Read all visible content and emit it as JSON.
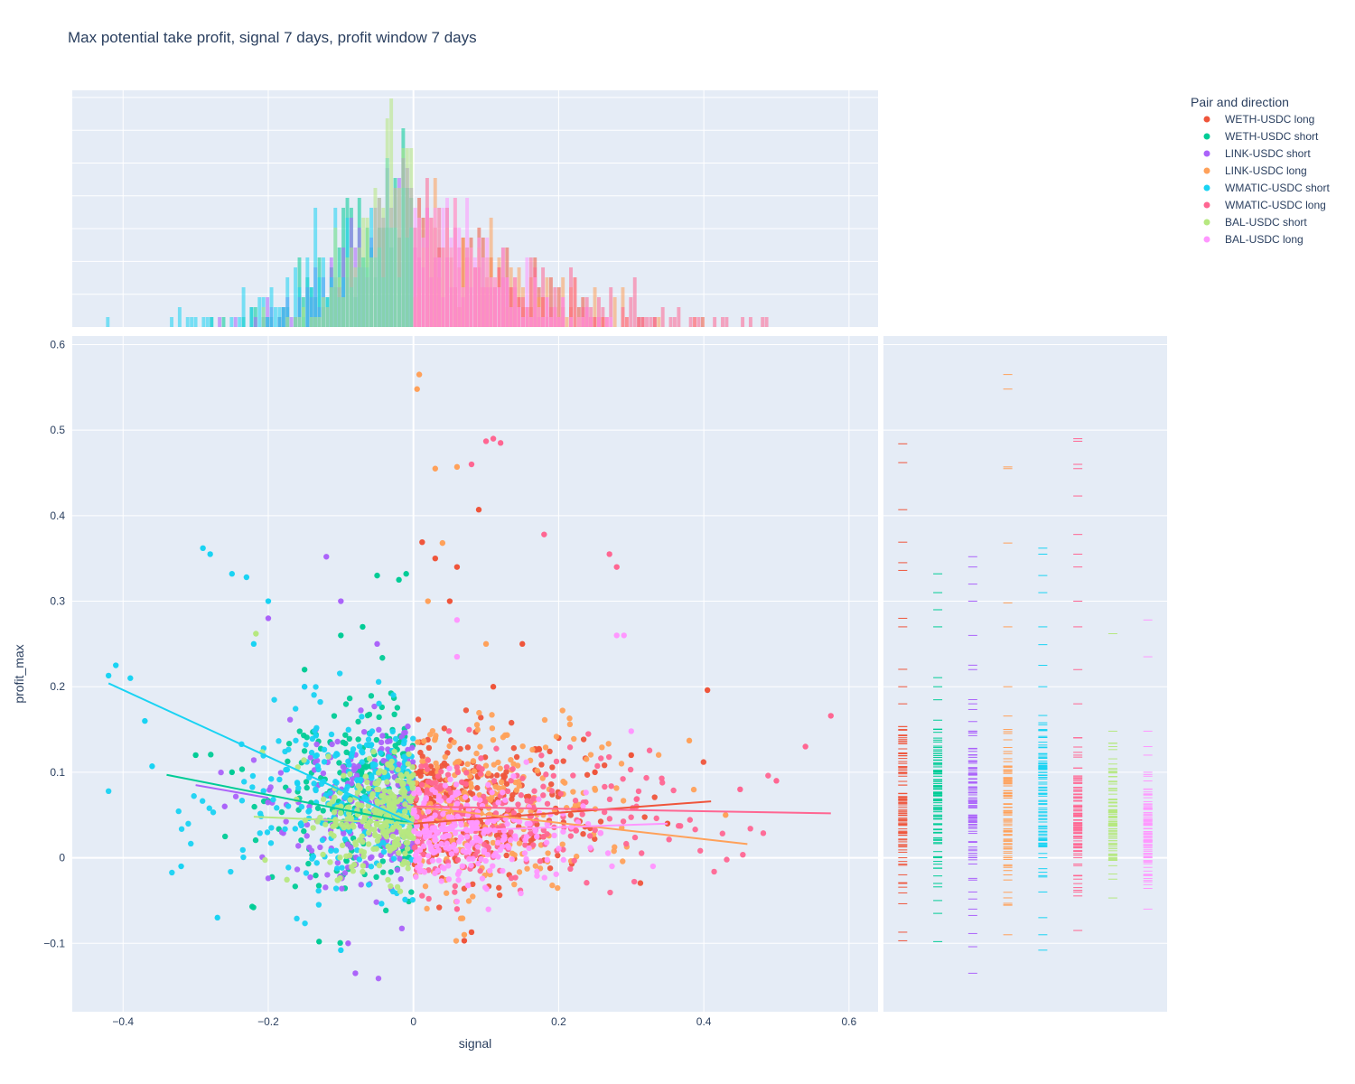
{
  "chart_data": {
    "type": "scatter",
    "title": "Max potential take profit, signal 7 days, profit window 7 days",
    "xlabel": "signal",
    "ylabel": "profit_max",
    "xlim": [
      -0.47,
      0.64
    ],
    "ylim": [
      -0.18,
      0.61
    ],
    "x_ticks": [
      -0.4,
      -0.2,
      0,
      0.2,
      0.4,
      0.6
    ],
    "x_tick_labels": [
      "−0.4",
      "−0.2",
      "0",
      "0.2",
      "0.4",
      "0.6"
    ],
    "y_ticks": [
      -0.1,
      0,
      0.1,
      0.2,
      0.3,
      0.4,
      0.5,
      0.6
    ],
    "y_tick_labels": [
      "−0.1",
      "0",
      "0.1",
      "0.2",
      "0.3",
      "0.4",
      "0.5",
      "0.6"
    ],
    "grid": true,
    "legend_title": "Pair and direction",
    "legend_position": "top-right",
    "marginal_x": "histogram",
    "marginal_y": "rug",
    "trendline": "ols",
    "series": [
      {
        "name": "WETH-USDC long",
        "color": "#EF553B",
        "x_range": [
          0,
          0.41
        ],
        "y_center": 0.06,
        "y_spread": 0.045,
        "trendline": [
          [
            0.0,
            0.04
          ],
          [
            0.41,
            0.066
          ]
        ],
        "points": [
          [
            0.09,
            0.407
          ],
          [
            0.012,
            0.369
          ],
          [
            0.405,
            0.196
          ],
          [
            0.06,
            0.34
          ],
          [
            0.03,
            0.35
          ],
          [
            0.05,
            0.3
          ],
          [
            0.11,
            0.2
          ],
          [
            0.2,
            0.14
          ],
          [
            0.3,
            0.12
          ],
          [
            0.07,
            -0.097
          ],
          [
            0.08,
            -0.087
          ],
          [
            0.35,
            0.04
          ],
          [
            0.25,
            0.1
          ],
          [
            0.15,
            0.25
          ]
        ],
        "rug_y": [
          0.484,
          0.462,
          0.407,
          0.369,
          0.345,
          0.336,
          0.28,
          0.27,
          0.2,
          0.18,
          0.15,
          0.1,
          0.05,
          0.0,
          -0.03,
          -0.087,
          -0.097
        ]
      },
      {
        "name": "WETH-USDC short",
        "color": "#00CC96",
        "x_range": [
          -0.35,
          0
        ],
        "y_center": 0.07,
        "y_spread": 0.05,
        "trendline": [
          [
            -0.34,
            0.097
          ],
          [
            0.0,
            0.04
          ]
        ],
        "points": [
          [
            -0.01,
            0.332
          ],
          [
            -0.02,
            0.325
          ],
          [
            -0.05,
            0.33
          ],
          [
            -0.13,
            -0.098
          ],
          [
            -0.3,
            0.12
          ],
          [
            -0.25,
            0.1
          ],
          [
            -0.1,
            0.26
          ],
          [
            -0.15,
            0.22
          ],
          [
            -0.07,
            0.27
          ]
        ],
        "rug_y": [
          0.332,
          0.31,
          0.29,
          0.27,
          0.2,
          0.15,
          0.1,
          0.05,
          0.0,
          -0.03,
          -0.05,
          -0.065,
          -0.098
        ]
      },
      {
        "name": "LINK-USDC short",
        "color": "#AB63FA",
        "x_range": [
          -0.3,
          0
        ],
        "y_center": 0.06,
        "y_spread": 0.05,
        "trendline": [
          [
            -0.3,
            0.085
          ],
          [
            -0.2,
            0.07
          ]
        ],
        "points": [
          [
            -0.08,
            -0.135
          ],
          [
            -0.12,
            0.352
          ],
          [
            -0.1,
            0.3
          ],
          [
            -0.2,
            0.28
          ],
          [
            -0.26,
            0.06
          ],
          [
            -0.15,
            0.2
          ],
          [
            -0.05,
            0.25
          ],
          [
            -0.09,
            -0.1
          ]
        ],
        "rug_y": [
          0.352,
          0.34,
          0.32,
          0.3,
          0.26,
          0.22,
          0.18,
          0.12,
          0.06,
          0.0,
          -0.04,
          -0.06,
          -0.104,
          -0.135
        ]
      },
      {
        "name": "LINK-USDC long",
        "color": "#FFA15A",
        "x_range": [
          0,
          0.46
        ],
        "y_center": 0.06,
        "y_spread": 0.05,
        "trendline": [
          [
            0.0,
            0.06
          ],
          [
            0.46,
            0.016
          ]
        ],
        "points": [
          [
            0.008,
            0.565
          ],
          [
            0.005,
            0.548
          ],
          [
            0.06,
            0.457
          ],
          [
            0.03,
            0.455
          ],
          [
            0.04,
            0.368
          ],
          [
            0.02,
            0.3
          ],
          [
            0.38,
            0.137
          ],
          [
            0.43,
            0.05
          ],
          [
            0.07,
            -0.09
          ],
          [
            0.1,
            0.25
          ]
        ],
        "rug_y": [
          0.565,
          0.548,
          0.457,
          0.455,
          0.368,
          0.298,
          0.27,
          0.2,
          0.15,
          0.1,
          0.05,
          0.0,
          -0.02,
          -0.055,
          -0.09
        ]
      },
      {
        "name": "WMATIC-USDC short",
        "color": "#19D3F3",
        "x_range": [
          -0.42,
          0
        ],
        "y_center": 0.07,
        "y_spread": 0.05,
        "trendline": [
          [
            -0.42,
            0.204
          ],
          [
            0.0,
            0.04
          ]
        ],
        "points": [
          [
            -0.42,
            0.213
          ],
          [
            -0.41,
            0.225
          ],
          [
            -0.39,
            0.21
          ],
          [
            -0.37,
            0.16
          ],
          [
            -0.36,
            0.107
          ],
          [
            -0.29,
            0.362
          ],
          [
            -0.28,
            0.355
          ],
          [
            -0.25,
            0.332
          ],
          [
            -0.23,
            0.328
          ],
          [
            -0.2,
            0.3
          ],
          [
            -0.32,
            -0.01
          ],
          [
            -0.27,
            -0.07
          ],
          [
            -0.1,
            -0.108
          ],
          [
            -0.22,
            0.25
          ],
          [
            -0.15,
            0.2
          ]
        ],
        "rug_y": [
          0.362,
          0.355,
          0.33,
          0.31,
          0.27,
          0.225,
          0.2,
          0.15,
          0.1,
          0.05,
          0.0,
          -0.04,
          -0.07,
          -0.09,
          -0.108
        ]
      },
      {
        "name": "WMATIC-USDC long",
        "color": "#FF6692",
        "x_range": [
          0,
          0.58
        ],
        "y_center": 0.045,
        "y_spread": 0.04,
        "trendline": [
          [
            0.0,
            0.06
          ],
          [
            0.575,
            0.052
          ]
        ],
        "points": [
          [
            0.11,
            0.49
          ],
          [
            0.1,
            0.487
          ],
          [
            0.08,
            0.46
          ],
          [
            0.12,
            0.485
          ],
          [
            0.575,
            0.166
          ],
          [
            0.54,
            0.13
          ],
          [
            0.5,
            0.09
          ],
          [
            0.45,
            0.08
          ],
          [
            0.27,
            0.355
          ],
          [
            0.28,
            0.34
          ],
          [
            0.18,
            0.378
          ],
          [
            0.06,
            -0.06
          ]
        ],
        "rug_y": [
          0.49,
          0.487,
          0.46,
          0.455,
          0.423,
          0.378,
          0.355,
          0.34,
          0.3,
          0.27,
          0.22,
          0.18,
          0.12,
          0.06,
          0.0,
          -0.04,
          -0.085
        ]
      },
      {
        "name": "BAL-USDC short",
        "color": "#B6E880",
        "x_range": [
          -0.22,
          0
        ],
        "y_center": 0.05,
        "y_spread": 0.035,
        "trendline": [
          [
            -0.22,
            0.048
          ],
          [
            0.0,
            0.04
          ]
        ],
        "points": [
          [
            -0.217,
            0.262
          ],
          [
            -0.04,
            0.1
          ],
          [
            -0.05,
            0.08
          ],
          [
            -0.1,
            0.06
          ]
        ],
        "rug_y": [
          0.262,
          0.148,
          0.13,
          0.1,
          0.08,
          0.06,
          0.04,
          0.02,
          0.0,
          -0.025,
          -0.047
        ]
      },
      {
        "name": "BAL-USDC long",
        "color": "#FF97FF",
        "x_range": [
          0,
          0.35
        ],
        "y_center": 0.03,
        "y_spread": 0.03,
        "trendline": [
          [
            0.0,
            0.03
          ],
          [
            0.35,
            0.04
          ]
        ],
        "points": [
          [
            0.06,
            0.278
          ],
          [
            0.28,
            0.26
          ],
          [
            0.29,
            0.26
          ],
          [
            0.06,
            0.235
          ],
          [
            0.3,
            0.148
          ],
          [
            0.33,
            -0.01
          ]
        ],
        "rug_y": [
          0.278,
          0.235,
          0.148,
          0.13,
          0.12,
          0.1,
          0.08,
          0.05,
          0.03,
          0.0,
          -0.02,
          -0.06
        ]
      }
    ]
  }
}
